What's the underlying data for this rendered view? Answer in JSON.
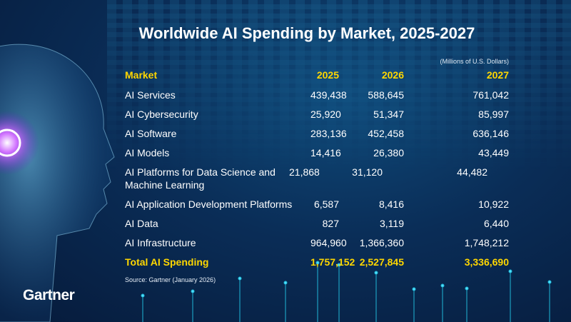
{
  "title": "Worldwide AI Spending by Market, 2025-2027",
  "units": "(Millions of U.S. Dollars)",
  "source": "Source: Gartner (January 2026)",
  "logo": "Gartner",
  "colors": {
    "background": "#0a2d57",
    "accent": "#ffd700",
    "text": "#ffffff"
  },
  "chart_data": {
    "type": "table",
    "title": "Worldwide AI Spending by Market, 2025-2027",
    "columns": [
      "Market",
      "2025",
      "2026",
      "2027"
    ],
    "rows": [
      [
        "AI Services",
        "439,438",
        "588,645",
        "761,042"
      ],
      [
        "AI Cybersecurity",
        "25,920",
        "51,347",
        "85,997"
      ],
      [
        "AI Software",
        "283,136",
        "452,458",
        "636,146"
      ],
      [
        "AI Models",
        "14,416",
        "26,380",
        "43,449"
      ],
      [
        "AI Platforms for Data Science and Machine Learning",
        "21,868",
        "31,120",
        "44,482"
      ],
      [
        "AI Application Development Platforms",
        "6,587",
        "8,416",
        "10,922"
      ],
      [
        "AI Data",
        "827",
        "3,119",
        "6,440"
      ],
      [
        "AI Infrastructure",
        "964,960",
        "1,366,360",
        "1,748,212"
      ]
    ],
    "total": [
      "Total AI Spending",
      "1,757,152",
      "2,527,845",
      "3,336,690"
    ]
  }
}
